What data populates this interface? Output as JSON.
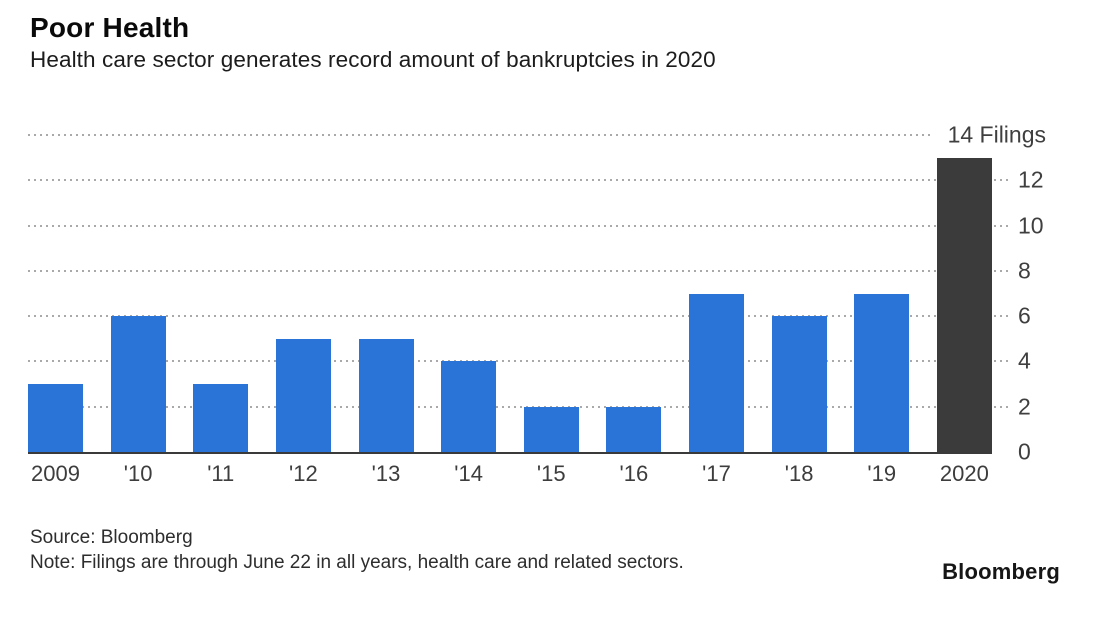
{
  "chart_data": {
    "type": "bar",
    "title": "Poor Health",
    "subtitle": "Health care sector generates record amount of bankruptcies in 2020",
    "categories": [
      "2009",
      "'10",
      "'11",
      "'12",
      "'13",
      "'14",
      "'15",
      "'16",
      "'17",
      "'18",
      "'19",
      "2020"
    ],
    "values": [
      3,
      6,
      3,
      5,
      5,
      4,
      2,
      2,
      7,
      6,
      7,
      13
    ],
    "xlabel": "",
    "ylabel": "Filings",
    "ylim": [
      0,
      14
    ],
    "y_tick_labels": [
      "0",
      "2",
      "4",
      "6",
      "8",
      "10",
      "12"
    ],
    "top_axis_label": "14 Filings",
    "grid": "dotted-horizontal",
    "legend_position": "none",
    "bar_color": "#2a74d8",
    "highlight_color": "#3b3b3b",
    "highlight_index": 11,
    "gridline_color": "#a9a9a9",
    "axis_line_color": "#3a3a3a"
  },
  "footer": {
    "source": "Source: Bloomberg",
    "note": "Note: Filings are through June 22 in all years, health care and related sectors.",
    "logo": "Bloomberg"
  }
}
